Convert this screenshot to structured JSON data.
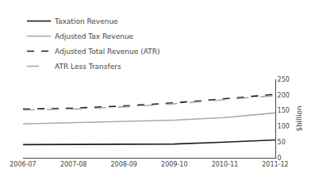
{
  "chart_data": {
    "type": "line",
    "categories": [
      "2006-07",
      "2007-08",
      "2008-09",
      "2009-10",
      "2010-11",
      "2011-12"
    ],
    "series": [
      {
        "name": "Taxation Revenue",
        "color": "#1a1a1a",
        "line_style": "solid",
        "values": [
          42,
          43,
          44,
          44,
          50,
          57
        ]
      },
      {
        "name": "Adjusted Tax Revenue",
        "color": "#aaaaaa",
        "line_style": "solid",
        "values": [
          108,
          112,
          116,
          120,
          128,
          143
        ]
      },
      {
        "name": "Adjusted Total Revenue (ATR)",
        "color": "#1a1a1a",
        "line_style": "dashed",
        "values": [
          155,
          158,
          165,
          175,
          188,
          202
        ]
      },
      {
        "name": "ATR Less Transfers",
        "color": "#aaaaaa",
        "line_style": "long-dashed",
        "values": [
          152,
          155,
          162,
          172,
          185,
          198
        ]
      }
    ],
    "ylabel": "$billion",
    "ylim": [
      0,
      250
    ],
    "yticks": [
      0,
      50,
      100,
      150,
      200,
      250
    ],
    "grid": false,
    "legend": "top-left"
  }
}
